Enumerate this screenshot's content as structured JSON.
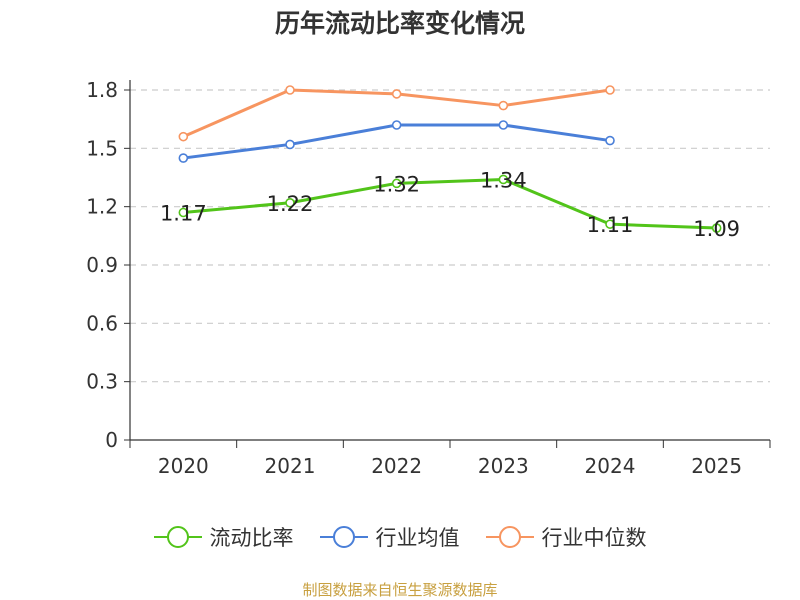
{
  "chart_data": {
    "type": "line",
    "title": "历年流动比率变化情况",
    "categories": [
      "2020",
      "2021",
      "2022",
      "2023",
      "2024",
      "2025"
    ],
    "yticks": [
      "0",
      "0.3",
      "0.6",
      "0.9",
      "1.2",
      "1.5",
      "1.8"
    ],
    "ylim": [
      0,
      1.8
    ],
    "grid": true,
    "legend_position": "bottom",
    "series": [
      {
        "name": "流动比率",
        "color": "#52c41a",
        "values": [
          1.17,
          1.22,
          1.32,
          1.34,
          1.11,
          1.09
        ],
        "labels": [
          "1.17",
          "1.22",
          "1.32",
          "1.34",
          "1.11",
          "1.09"
        ]
      },
      {
        "name": "行业均值",
        "color": "#4a7fd8",
        "values": [
          1.45,
          1.52,
          1.62,
          1.62,
          1.54,
          null
        ]
      },
      {
        "name": "行业中位数",
        "color": "#f79560",
        "values": [
          1.56,
          1.8,
          1.78,
          1.72,
          1.8,
          null
        ]
      }
    ]
  },
  "source_note": "制图数据来自恒生聚源数据库"
}
